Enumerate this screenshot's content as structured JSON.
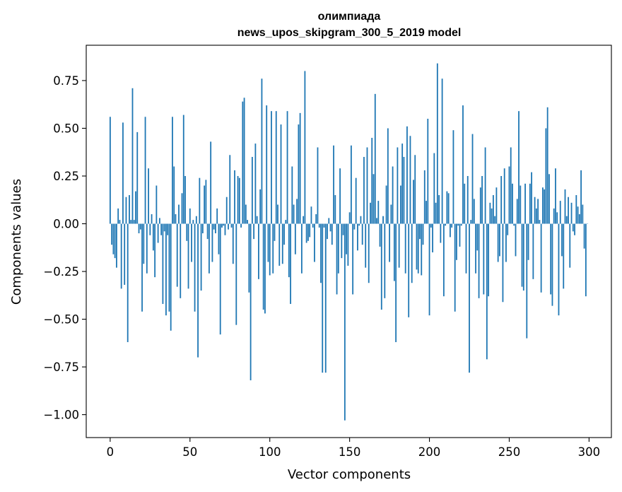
{
  "chart_data": {
    "type": "bar",
    "title": "олимпиада",
    "subtitle": "news_upos_skipgram_300_5_2019 model",
    "xlabel": "Vector components",
    "ylabel": "Components values",
    "xlim": [
      -15,
      314
    ],
    "ylim": [
      -1.12,
      0.935
    ],
    "xticks": [
      0,
      50,
      100,
      150,
      200,
      250,
      300
    ],
    "xtick_labels": [
      "0",
      "50",
      "100",
      "150",
      "200",
      "250",
      "300"
    ],
    "yticks": [
      -1.0,
      -0.75,
      -0.5,
      -0.25,
      0.0,
      0.25,
      0.5,
      0.75
    ],
    "ytick_labels": [
      "−1.00",
      "−0.75",
      "−0.50",
      "−0.25",
      "0.00",
      "0.25",
      "0.50",
      "0.75"
    ],
    "grid": false,
    "bar_color": "#1f77b4",
    "x_start": 0,
    "values": [
      0.56,
      -0.11,
      -0.16,
      -0.18,
      -0.23,
      0.08,
      0.02,
      -0.34,
      0.53,
      -0.32,
      0.14,
      -0.62,
      0.15,
      0.02,
      0.71,
      0.02,
      0.17,
      0.48,
      -0.05,
      -0.03,
      -0.46,
      -0.21,
      0.56,
      -0.26,
      0.29,
      -0.06,
      0.05,
      -0.14,
      -0.28,
      0.2,
      -0.1,
      0.03,
      -0.06,
      -0.42,
      -0.04,
      -0.48,
      -0.06,
      -0.46,
      -0.56,
      0.56,
      0.3,
      0.05,
      -0.33,
      0.1,
      -0.39,
      0.16,
      0.57,
      0.25,
      -0.09,
      -0.34,
      0.08,
      -0.2,
      0.02,
      -0.46,
      0.04,
      -0.7,
      0.24,
      -0.35,
      -0.05,
      0.2,
      0.23,
      -0.08,
      -0.26,
      0.43,
      -0.2,
      -0.03,
      -0.05,
      0.08,
      -0.16,
      -0.58,
      -0.02,
      -0.01,
      -0.06,
      0.14,
      -0.03,
      0.36,
      -0.02,
      -0.21,
      0.28,
      -0.53,
      0.25,
      0.24,
      -0.02,
      0.64,
      0.66,
      0.1,
      0.02,
      -0.36,
      -0.82,
      0.35,
      -0.08,
      0.42,
      0.04,
      -0.29,
      0.18,
      0.76,
      -0.45,
      -0.47,
      0.62,
      -0.2,
      -0.27,
      0.59,
      -0.26,
      -0.09,
      0.59,
      0.1,
      -0.22,
      0.52,
      -0.21,
      -0.11,
      0.02,
      0.59,
      -0.28,
      -0.42,
      0.3,
      0.1,
      -0.16,
      0.13,
      0.52,
      0.58,
      -0.26,
      0.04,
      0.8,
      -0.1,
      -0.09,
      -0.07,
      0.09,
      -0.02,
      -0.2,
      0.05,
      0.4,
      -0.02,
      -0.31,
      -0.78,
      -0.02,
      -0.78,
      -0.08,
      0.03,
      -0.04,
      -0.11,
      0.41,
      0.15,
      -0.37,
      -0.26,
      0.29,
      -0.18,
      -0.06,
      -1.03,
      -0.16,
      -0.22,
      0.06,
      0.41,
      -0.37,
      -0.03,
      0.24,
      -0.14,
      -0.01,
      0.04,
      -0.11,
      0.35,
      -0.23,
      0.4,
      -0.31,
      0.11,
      0.45,
      0.26,
      0.68,
      0.03,
      0.12,
      -0.12,
      -0.45,
      0.04,
      -0.39,
      0.2,
      0.5,
      -0.2,
      0.1,
      0.3,
      -0.3,
      -0.62,
      0.4,
      -0.23,
      0.2,
      0.42,
      0.35,
      -0.26,
      0.51,
      -0.49,
      0.46,
      -0.31,
      0.23,
      0.36,
      -0.24,
      -0.26,
      -0.08,
      -0.27,
      -0.11,
      0.28,
      0.12,
      0.55,
      -0.48,
      -0.02,
      -0.15,
      0.37,
      0.11,
      0.84,
      0.15,
      -0.1,
      0.76,
      -0.38,
      -0.01,
      0.17,
      0.16,
      -0.07,
      -0.02,
      0.49,
      -0.46,
      -0.19,
      -0.01,
      -0.12,
      -0.01,
      0.62,
      0.21,
      -0.26,
      0.25,
      -0.78,
      0.02,
      0.47,
      0.13,
      -0.26,
      -0.14,
      -0.39,
      0.19,
      0.25,
      -0.37,
      0.4,
      -0.71,
      -0.38,
      0.11,
      0.08,
      0.15,
      0.04,
      0.19,
      -0.2,
      -0.17,
      0.25,
      -0.41,
      0.29,
      -0.2,
      -0.06,
      0.3,
      0.4,
      0.21,
      -0.01,
      -0.17,
      0.13,
      0.59,
      0.2,
      -0.33,
      -0.35,
      0.21,
      -0.6,
      -0.19,
      0.21,
      0.27,
      -0.29,
      0.14,
      0.08,
      0.13,
      0.02,
      -0.36,
      0.19,
      0.18,
      0.5,
      0.61,
      0.26,
      -0.37,
      -0.43,
      0.08,
      0.29,
      0.06,
      -0.48,
      0.12,
      -0.17,
      -0.34,
      0.18,
      0.04,
      0.14,
      -0.23,
      0.11,
      -0.04,
      -0.06,
      0.15,
      0.09,
      0.05,
      0.28,
      0.1,
      -0.13,
      -0.38,
      0.0
    ]
  }
}
